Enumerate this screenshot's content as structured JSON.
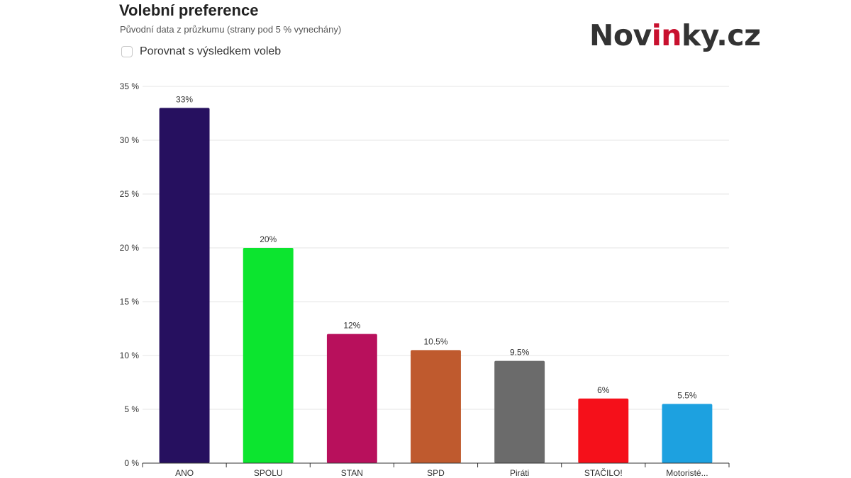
{
  "header": {
    "title": "Volební preference",
    "subtitle": "Původní data z průzkumu (strany pod 5 % vynechány)",
    "compare_label": "Porovnat s výsledkem voleb",
    "compare_checked": false
  },
  "logo": {
    "part1": "Nov",
    "part2": "in",
    "part3": "ky.cz",
    "accent_color": "#c8102e",
    "text_color": "#333333"
  },
  "chart_data": {
    "type": "bar",
    "title": "Volební preference",
    "subtitle": "Původní data z průzkumu (strany pod 5 % vynechány)",
    "categories": [
      "ANO",
      "SPOLU",
      "STAN",
      "SPD",
      "Piráti",
      "STAČILO!",
      "Motoristé..."
    ],
    "values": [
      33,
      20,
      12,
      10.5,
      9.5,
      6,
      5.5
    ],
    "data_labels": [
      "33%",
      "20%",
      "12%",
      "10.5%",
      "9.5%",
      "6%",
      "5.5%"
    ],
    "colors": [
      "#26105f",
      "#0ce52f",
      "#b8105c",
      "#bf5a2e",
      "#6b6b6b",
      "#f5101a",
      "#1da1e0"
    ],
    "ylim": [
      0,
      35
    ],
    "yticks": [
      0,
      5,
      10,
      15,
      20,
      25,
      30,
      35
    ],
    "ytick_labels": [
      "0 %",
      "5 %",
      "10 %",
      "15 %",
      "20 %",
      "25 %",
      "30 %",
      "35 %"
    ],
    "grid": true,
    "legend": "none",
    "xlabel": "",
    "ylabel": ""
  }
}
